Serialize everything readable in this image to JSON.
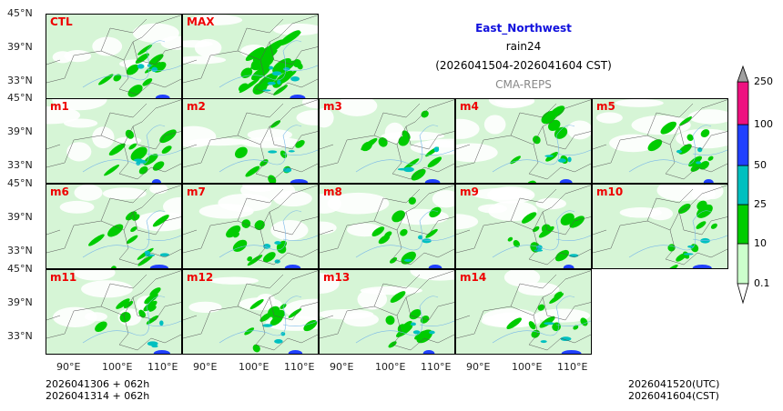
{
  "title": {
    "region": "East_Northwest",
    "variable": "rain24",
    "period": "(2026041504-2026041604 CST)",
    "model": "CMA-REPS"
  },
  "panels": [
    "CTL",
    "MAX",
    "m1",
    "m2",
    "m3",
    "m4",
    "m5",
    "m6",
    "m7",
    "m8",
    "m9",
    "m10",
    "m11",
    "m12",
    "m13",
    "m14"
  ],
  "lat_ticks": [
    "45°N",
    "39°N",
    "33°N"
  ],
  "lon_ticks": [
    "90°E",
    "100°E",
    "110°E"
  ],
  "colorbar": {
    "levels": [
      "0.1",
      "10",
      "25",
      "50",
      "100",
      "250"
    ],
    "colors": [
      "#ccffcc",
      "#00cc00",
      "#00c0c0",
      "#2040ff",
      "#ee1180"
    ],
    "over_color": "#a0a0a0",
    "under_color": "#ffffff"
  },
  "footer": {
    "left1": "2026041306  +  062h",
    "left2": "2026041314  +  062h",
    "right1": "2026041520(UTC)",
    "right2": "2026041604(CST)"
  }
}
